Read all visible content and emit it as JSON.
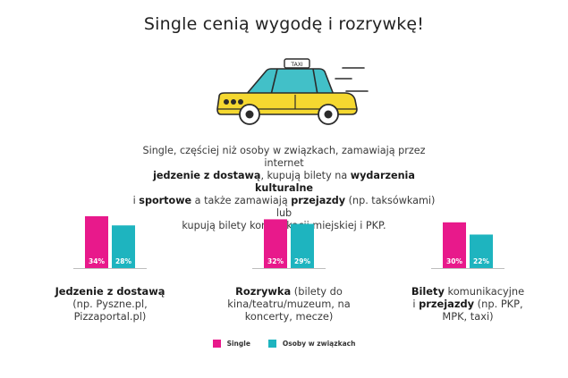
{
  "headline": "Single cenią wygodę i rozrywkę!",
  "taxi_sign": "TAXI",
  "intro": [
    [
      "Single, częściej niż osoby w związkach, zamawiają przez internet"
    ],
    [
      {
        "b": "jedzenie z dostawą"
      },
      ", kupują bilety na ",
      {
        "b": "wydarzenia kulturalne"
      }
    ],
    [
      "i ",
      {
        "b": "sportowe"
      },
      " a także zamawiają  ",
      {
        "b": "przejazdy"
      },
      " (np. taksówkami) lub"
    ],
    [
      "kupują bilety komunikacji miejskiej i PKP."
    ]
  ],
  "colors": {
    "single": "#e8198b",
    "couples": "#1eb4bf",
    "taxi_body": "#f5d830",
    "taxi_window": "#42c0c8",
    "outline": "#2b2b2b"
  },
  "chart_data": {
    "type": "bar",
    "series": [
      {
        "name": "Single",
        "values": [
          34,
          32,
          30
        ]
      },
      {
        "name": "Osoby w związkach",
        "values": [
          28,
          29,
          22
        ]
      }
    ],
    "value_labels": [
      [
        "34%",
        "32%",
        "30%"
      ],
      [
        "28%",
        "29%",
        "22%"
      ]
    ],
    "categories": [
      [
        [
          {
            "b": "Jedzenie z dostawą"
          }
        ],
        [
          "(np. Pyszne.pl,"
        ],
        [
          "Pizzaportal.pl)"
        ]
      ],
      [
        [
          {
            "b": "Rozrywka"
          },
          " (bilety do"
        ],
        [
          "kina/teatru/muzeum, na"
        ],
        [
          "koncerty, mecze)"
        ]
      ],
      [
        [
          {
            "b": "Bilety"
          },
          " komunikacyjne"
        ],
        [
          "i ",
          {
            "b": "przejazdy"
          },
          " (np. PKP,"
        ],
        [
          "MPK, taxi)"
        ]
      ]
    ],
    "legend": [
      "Single",
      "Osoby w związkach"
    ],
    "legend_position": "bottom-center",
    "grid": false
  }
}
